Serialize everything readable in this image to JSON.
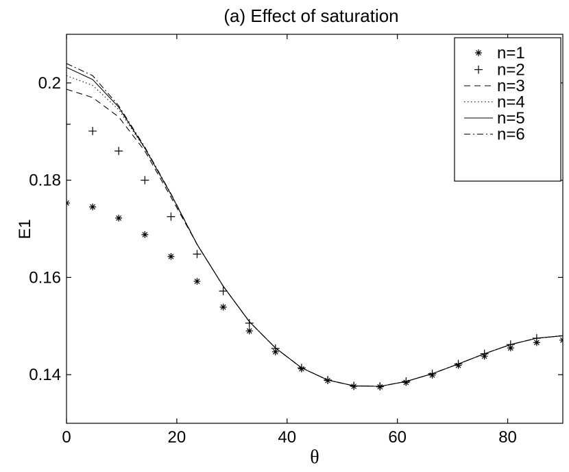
{
  "chart_data": {
    "type": "line",
    "title": "(a) Effect of saturation",
    "xlabel": "θ",
    "ylabel": "E1",
    "xlim": [
      0,
      90
    ],
    "ylim": [
      0.13,
      0.21
    ],
    "xticks": [
      0,
      20,
      40,
      60,
      80
    ],
    "xtick_labels": [
      "0",
      "20",
      "40",
      "60",
      "80"
    ],
    "yticks": [
      0.14,
      0.16,
      0.18,
      0.2
    ],
    "ytick_labels": [
      "0.14",
      "0.16",
      "0.18",
      "0.2"
    ],
    "grid": false,
    "legend_position": "top-right",
    "x": [
      0,
      4.74,
      9.47,
      14.21,
      18.95,
      23.68,
      28.42,
      33.16,
      37.89,
      42.63,
      47.37,
      52.11,
      56.84,
      61.58,
      66.32,
      71.05,
      75.79,
      80.53,
      85.26,
      90
    ],
    "series": [
      {
        "name": "n=1",
        "style": "marker-star",
        "values": [
          0.1753,
          0.1745,
          0.1722,
          0.1688,
          0.1643,
          0.1592,
          0.1539,
          0.149,
          0.1447,
          0.1412,
          0.1388,
          0.1376,
          0.1375,
          0.1384,
          0.1399,
          0.1419,
          0.1438,
          0.1455,
          0.1466,
          0.1471
        ]
      },
      {
        "name": "n=2",
        "style": "marker-plus",
        "values": [
          0.1915,
          0.1901,
          0.186,
          0.18,
          0.1725,
          0.1648,
          0.1572,
          0.1506,
          0.1454,
          0.1414,
          0.1389,
          0.1377,
          0.1376,
          0.1386,
          0.1402,
          0.1422,
          0.1443,
          0.1462,
          0.1475,
          0.148
        ]
      },
      {
        "name": "n=3",
        "style": "dashed",
        "values": [
          0.1987,
          0.197,
          0.193,
          0.186,
          0.1765,
          0.1668,
          0.1582,
          0.1509,
          0.1455,
          0.1414,
          0.1389,
          0.1377,
          0.1376,
          0.1386,
          0.1402,
          0.1422,
          0.1443,
          0.1462,
          0.1475,
          0.148
        ]
      },
      {
        "name": "n=4",
        "style": "dotted",
        "values": [
          0.2015,
          0.1995,
          0.1945,
          0.1865,
          0.177,
          0.1668,
          0.1582,
          0.1509,
          0.1455,
          0.1414,
          0.1389,
          0.1377,
          0.1376,
          0.1386,
          0.1402,
          0.1422,
          0.1443,
          0.1462,
          0.1475,
          0.148
        ]
      },
      {
        "name": "n=5",
        "style": "solid",
        "values": [
          0.2032,
          0.2007,
          0.195,
          0.1866,
          0.1771,
          0.1668,
          0.1582,
          0.1509,
          0.1455,
          0.1414,
          0.1389,
          0.1377,
          0.1376,
          0.1386,
          0.1402,
          0.1422,
          0.1443,
          0.1462,
          0.1475,
          0.148
        ]
      },
      {
        "name": "n=6",
        "style": "dashdot",
        "values": [
          0.204,
          0.2015,
          0.1953,
          0.1868,
          0.1772,
          0.1668,
          0.1582,
          0.1509,
          0.1455,
          0.1414,
          0.1389,
          0.1377,
          0.1376,
          0.1386,
          0.1402,
          0.1422,
          0.1443,
          0.1462,
          0.1475,
          0.148
        ]
      }
    ]
  }
}
